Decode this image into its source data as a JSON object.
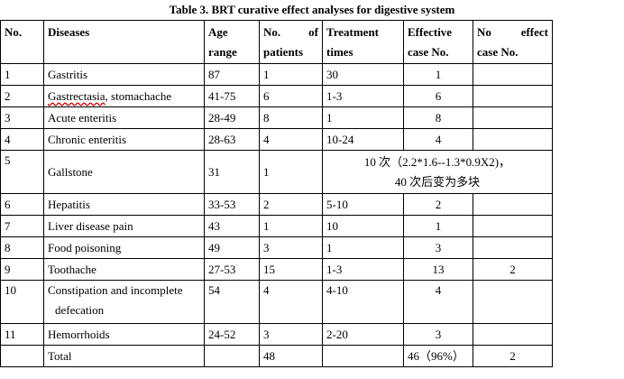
{
  "caption": "Table 3. BRT curative effect analyses for digestive system",
  "headers": {
    "no": "No.",
    "diseases": "Diseases",
    "age_l1": "Age",
    "age_l2": "range",
    "pat_l1a": "No.",
    "pat_l1b": "of",
    "pat_l2": "patients",
    "treat_l1": "Treatment",
    "treat_l2": "times",
    "eff_l1": "Effective",
    "eff_l2": "case No.",
    "noeff_l1a": "No",
    "noeff_l1b": "effect",
    "noeff_l2": "case No."
  },
  "rows": [
    {
      "no": "1",
      "disease": "Gastritis",
      "age": "87",
      "patients": "1",
      "times": "30",
      "effective": "1",
      "no_effect": ""
    },
    {
      "no": "2",
      "disease_a": "Gastrectasia",
      "disease_b": ", stomachache",
      "age": "41-75",
      "patients": "6",
      "times": "1-3",
      "effective": "6",
      "no_effect": ""
    },
    {
      "no": "3",
      "disease": "Acute enteritis",
      "age": "28-49",
      "patients": "8",
      "times": "1",
      "effective": "8",
      "no_effect": ""
    },
    {
      "no": "4",
      "disease": "Chronic enteritis",
      "age": "28-63",
      "patients": "4",
      "times": "10-24",
      "effective": "4",
      "no_effect": ""
    },
    {
      "no": "5",
      "disease": "Gallstone",
      "age": "31",
      "patients": "1",
      "note_l1": "10 次（2.2*1.6--1.3*0.9X2)，",
      "note_l2": "40 次后变为多块"
    },
    {
      "no": "6",
      "disease": "Hepatitis",
      "age": "33-53",
      "patients": "2",
      "times": "5-10",
      "effective": "2",
      "no_effect": ""
    },
    {
      "no": "7",
      "disease": "Liver disease pain",
      "age": "43",
      "patients": "1",
      "times": "10",
      "effective": "1",
      "no_effect": ""
    },
    {
      "no": "8",
      "disease": "Food poisoning",
      "age": "49",
      "patients": "3",
      "times": "1",
      "effective": "3",
      "no_effect": ""
    },
    {
      "no": "9",
      "disease": "Toothache",
      "age": "27-53",
      "patients": "15",
      "times": "1-3",
      "effective": "13",
      "no_effect": "2"
    },
    {
      "no": "10",
      "disease_l1": "Constipation and incomplete",
      "disease_l2": "defecation",
      "age": "54",
      "patients": "4",
      "times": "4-10",
      "effective": "4",
      "no_effect": ""
    },
    {
      "no": "11",
      "disease": "Hemorrhoids",
      "age": "24-52",
      "patients": "3",
      "times": "2-20",
      "effective": "3",
      "no_effect": ""
    }
  ],
  "total": {
    "label": "Total",
    "patients": "48",
    "effective": "46（96%）",
    "no_effect": "2"
  }
}
